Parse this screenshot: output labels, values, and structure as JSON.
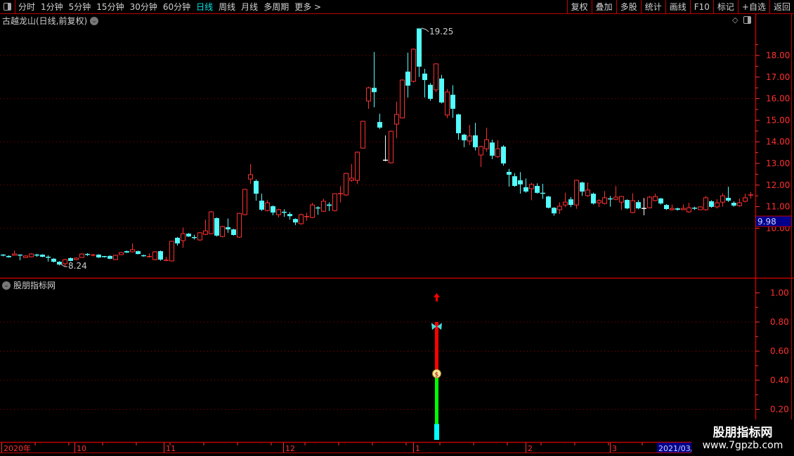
{
  "toolbar": {
    "periods": [
      "分时",
      "1分钟",
      "5分钟",
      "15分钟",
      "30分钟",
      "60分钟",
      "日线",
      "周线",
      "月线",
      "多周期",
      "更多 >"
    ],
    "active_period": "日线",
    "buttons": [
      "复权",
      "叠加",
      "多股",
      "统计",
      "画线",
      "F10",
      "标记",
      "+自选",
      "返回"
    ]
  },
  "chart_title": "古越龙山(日线,前复权)",
  "indicator_title": "股朋指标网",
  "colors": {
    "up": "#ff3030",
    "down": "#54fcfc",
    "doji": "#ffffff",
    "axis": "#ff3030",
    "grid": "#9a0000",
    "highlight_bg": "#00008b"
  },
  "price_axis": {
    "labels": [
      "18.00",
      "17.00",
      "16.00",
      "15.00",
      "14.00",
      "13.00",
      "12.00",
      "11.00",
      "10.00"
    ],
    "current_price": "9.98"
  },
  "annotations": {
    "high": "19.25",
    "low": "8.24"
  },
  "indicator_axis": {
    "labels": [
      "1.00",
      "0.80",
      "0.60",
      "0.40",
      "0.20"
    ]
  },
  "indicator_signal": {
    "cyan_top": 0.1,
    "green_top": 0.42,
    "money_bag": 0.45,
    "red_top": 0.8,
    "butterfly": 0.77,
    "arrow": 0.97
  },
  "date_axis": {
    "labels": [
      "2020年",
      "10",
      "11",
      "12",
      "1",
      "2",
      "3"
    ],
    "current": "2021/03/"
  },
  "watermark": {
    "line1": "股朋指标网",
    "line2": "www.7gpzb.com"
  },
  "chart_data": {
    "type": "candlestick",
    "fields": [
      "open",
      "high",
      "low",
      "close"
    ],
    "ylim": [
      8,
      19.5
    ],
    "candles": [
      [
        8.76,
        8.8,
        8.7,
        8.75
      ],
      [
        8.72,
        8.75,
        8.64,
        8.66
      ],
      [
        8.75,
        8.97,
        8.73,
        8.81
      ],
      [
        8.76,
        8.78,
        8.52,
        8.75
      ],
      [
        8.65,
        8.75,
        8.63,
        8.72
      ],
      [
        8.68,
        8.85,
        8.65,
        8.81
      ],
      [
        8.76,
        8.82,
        8.68,
        8.75
      ],
      [
        8.78,
        8.8,
        8.66,
        8.68
      ],
      [
        8.66,
        8.75,
        8.46,
        8.65
      ],
      [
        8.59,
        8.62,
        8.42,
        8.45
      ],
      [
        8.45,
        8.48,
        8.28,
        8.32
      ],
      [
        8.36,
        8.58,
        8.24,
        8.55
      ],
      [
        8.62,
        8.65,
        8.47,
        8.49
      ],
      [
        8.55,
        8.65,
        8.52,
        8.62
      ],
      [
        8.65,
        8.84,
        8.63,
        8.81
      ],
      [
        8.79,
        8.85,
        8.72,
        8.78
      ],
      [
        8.74,
        8.82,
        8.7,
        8.76
      ],
      [
        8.78,
        8.8,
        8.63,
        8.65
      ],
      [
        8.69,
        8.72,
        8.64,
        8.68
      ],
      [
        8.72,
        8.75,
        8.57,
        8.59
      ],
      [
        8.55,
        8.78,
        8.53,
        8.75
      ],
      [
        8.78,
        8.9,
        8.76,
        8.88
      ],
      [
        8.94,
        8.97,
        8.86,
        8.88
      ],
      [
        8.91,
        9.3,
        8.88,
        9.01
      ],
      [
        8.94,
        8.96,
        8.79,
        8.81
      ],
      [
        8.73,
        8.78,
        8.68,
        8.72
      ],
      [
        8.66,
        8.83,
        8.64,
        8.69
      ],
      [
        8.55,
        8.95,
        8.52,
        8.91
      ],
      [
        8.94,
        8.97,
        8.5,
        8.55
      ],
      [
        8.49,
        8.68,
        8.47,
        8.52
      ],
      [
        8.49,
        9.42,
        8.47,
        9.4
      ],
      [
        9.56,
        9.6,
        9.2,
        9.3
      ],
      [
        9.43,
        10.04,
        9.1,
        9.75
      ],
      [
        9.75,
        9.78,
        9.6,
        9.62
      ],
      [
        9.57,
        9.7,
        9.48,
        9.56
      ],
      [
        9.46,
        9.82,
        9.42,
        9.79
      ],
      [
        9.72,
        10.4,
        9.68,
        9.88
      ],
      [
        9.75,
        10.8,
        9.72,
        10.76
      ],
      [
        10.47,
        10.5,
        9.62,
        9.66
      ],
      [
        9.62,
        10.12,
        9.58,
        10.08
      ],
      [
        10.05,
        10.45,
        9.79,
        9.95
      ],
      [
        9.95,
        9.98,
        9.66,
        9.69
      ],
      [
        9.59,
        10.72,
        9.56,
        10.69
      ],
      [
        10.63,
        11.82,
        10.6,
        11.8
      ],
      [
        12.28,
        12.97,
        12.06,
        12.48
      ],
      [
        12.19,
        12.26,
        11.28,
        11.6
      ],
      [
        11.28,
        11.6,
        10.8,
        10.86
      ],
      [
        10.82,
        11.3,
        10.78,
        11.18
      ],
      [
        11.02,
        11.06,
        10.6,
        10.73
      ],
      [
        10.63,
        10.9,
        10.5,
        10.86
      ],
      [
        10.74,
        10.88,
        10.53,
        10.73
      ],
      [
        10.66,
        10.75,
        10.4,
        10.56
      ],
      [
        10.43,
        10.46,
        10.15,
        10.27
      ],
      [
        10.21,
        10.68,
        10.17,
        10.63
      ],
      [
        10.52,
        10.72,
        10.35,
        10.54
      ],
      [
        10.5,
        11.18,
        10.47,
        11.08
      ],
      [
        10.94,
        11.02,
        10.62,
        10.92
      ],
      [
        10.79,
        11.37,
        10.75,
        11.25
      ],
      [
        11.1,
        11.2,
        10.8,
        11.04
      ],
      [
        10.82,
        11.62,
        10.78,
        11.6
      ],
      [
        11.58,
        11.95,
        11.2,
        11.6
      ],
      [
        11.54,
        12.57,
        11.5,
        12.54
      ],
      [
        12.22,
        12.97,
        12.15,
        12.32
      ],
      [
        12.22,
        13.55,
        12.05,
        13.52
      ],
      [
        13.71,
        14.98,
        13.68,
        14.95
      ],
      [
        15.89,
        16.55,
        15.53,
        16.5
      ],
      [
        16.5,
        18.16,
        15.6,
        16.3
      ],
      [
        14.92,
        15.3,
        14.6,
        14.66
      ],
      [
        13.15,
        14.3,
        13.1,
        13.15
      ],
      [
        13.03,
        14.52,
        13.0,
        14.49
      ],
      [
        14.82,
        15.86,
        14.17,
        15.27
      ],
      [
        15.11,
        16.9,
        15.08,
        16.86
      ],
      [
        17.25,
        18.13,
        16.05,
        16.6
      ],
      [
        16.8,
        18.32,
        16.75,
        18.29
      ],
      [
        19.25,
        19.25,
        17.0,
        17.48
      ],
      [
        17.16,
        17.38,
        16.05,
        16.86
      ],
      [
        16.64,
        16.72,
        15.9,
        15.99
      ],
      [
        16.41,
        17.64,
        16.3,
        17.61
      ],
      [
        16.93,
        17.1,
        15.78,
        15.82
      ],
      [
        15.24,
        16.45,
        15.1,
        16.31
      ],
      [
        16.18,
        16.62,
        15.11,
        15.53
      ],
      [
        15.27,
        15.3,
        14.1,
        14.4
      ],
      [
        14.33,
        14.37,
        13.75,
        14.07
      ],
      [
        14.04,
        14.78,
        13.85,
        14.27
      ],
      [
        14.3,
        14.88,
        13.6,
        13.75
      ],
      [
        13.39,
        13.82,
        12.84,
        13.78
      ],
      [
        13.68,
        14.65,
        13.55,
        14.1
      ],
      [
        13.97,
        14.1,
        13.2,
        13.36
      ],
      [
        13.32,
        14.07,
        13.25,
        13.68
      ],
      [
        13.78,
        13.85,
        12.9,
        13.0
      ],
      [
        12.61,
        12.75,
        11.93,
        12.48
      ],
      [
        12.41,
        12.55,
        11.92,
        11.96
      ],
      [
        12.22,
        12.6,
        11.6,
        12.03
      ],
      [
        11.9,
        12.3,
        11.65,
        11.7
      ],
      [
        11.83,
        12.1,
        11.3,
        12.03
      ],
      [
        11.96,
        12.08,
        11.6,
        11.64
      ],
      [
        11.62,
        12.06,
        11.36,
        11.6
      ],
      [
        11.47,
        11.5,
        10.92,
        10.95
      ],
      [
        10.95,
        10.98,
        10.58,
        10.69
      ],
      [
        10.86,
        11.2,
        10.66,
        11.02
      ],
      [
        11.08,
        11.65,
        10.98,
        11.21
      ],
      [
        11.34,
        11.45,
        10.98,
        11.08
      ],
      [
        11.08,
        12.25,
        10.9,
        12.22
      ],
      [
        12.12,
        12.15,
        11.5,
        11.7
      ],
      [
        11.51,
        12.12,
        11.45,
        11.77
      ],
      [
        11.6,
        11.65,
        11.1,
        11.15
      ],
      [
        11.18,
        11.34,
        10.98,
        11.28
      ],
      [
        11.15,
        11.72,
        11.1,
        11.41
      ],
      [
        11.36,
        11.5,
        11.0,
        11.34
      ],
      [
        11.34,
        11.95,
        11.3,
        11.44
      ],
      [
        11.21,
        11.5,
        10.85,
        11.47
      ],
      [
        11.31,
        11.34,
        10.88,
        10.92
      ],
      [
        10.73,
        11.62,
        10.7,
        11.28
      ],
      [
        11.21,
        11.3,
        10.88,
        10.92
      ],
      [
        10.92,
        11.4,
        10.6,
        10.92
      ],
      [
        10.95,
        11.5,
        10.92,
        11.44
      ],
      [
        11.28,
        11.6,
        11.25,
        11.47
      ],
      [
        11.38,
        11.4,
        11.1,
        11.15
      ],
      [
        11.08,
        11.12,
        10.85,
        10.89
      ],
      [
        10.86,
        11.1,
        10.82,
        10.92
      ],
      [
        10.92,
        10.95,
        10.82,
        10.86
      ],
      [
        10.86,
        11.1,
        10.84,
        10.92
      ],
      [
        10.76,
        11.18,
        10.72,
        10.95
      ],
      [
        10.93,
        11.0,
        10.85,
        10.92
      ],
      [
        10.86,
        11.02,
        10.84,
        10.99
      ],
      [
        10.86,
        11.5,
        10.82,
        11.41
      ],
      [
        11.25,
        11.3,
        10.95,
        10.99
      ],
      [
        10.99,
        11.35,
        10.92,
        11.18
      ],
      [
        11.21,
        11.62,
        11.0,
        11.5
      ],
      [
        11.41,
        11.92,
        11.22,
        11.28
      ],
      [
        11.18,
        11.25,
        11.0,
        11.05
      ],
      [
        11.05,
        11.38,
        11.0,
        11.18
      ],
      [
        11.25,
        11.6,
        11.2,
        11.41
      ],
      [
        11.52,
        11.68,
        11.38,
        11.54
      ]
    ]
  }
}
